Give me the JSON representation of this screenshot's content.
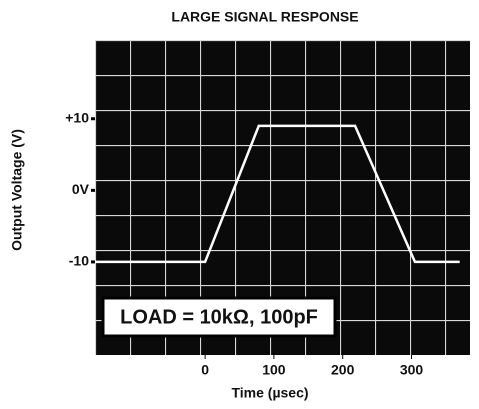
{
  "chart_data": {
    "type": "line",
    "title": "LARGE SIGNAL RESPONSE",
    "x_label": "Time (µsec)",
    "y_label": "Output Voltage (V)",
    "annotation": "LOAD = 10kΩ, 100pF",
    "x": [
      -160,
      0,
      78,
      218,
      305,
      370
    ],
    "series": [
      {
        "color": "#ffffff",
        "values": [
          -10,
          -10,
          9,
          9,
          -10,
          -10
        ]
      }
    ],
    "xlim": [
      -160,
      385
    ],
    "ylim": [
      -23,
      21
    ],
    "xticks": [
      0,
      100,
      200,
      300
    ],
    "yticks": [
      {
        "value": 10,
        "label": "+10"
      },
      {
        "value": 0,
        "label": "0V"
      },
      -10
    ]
  }
}
